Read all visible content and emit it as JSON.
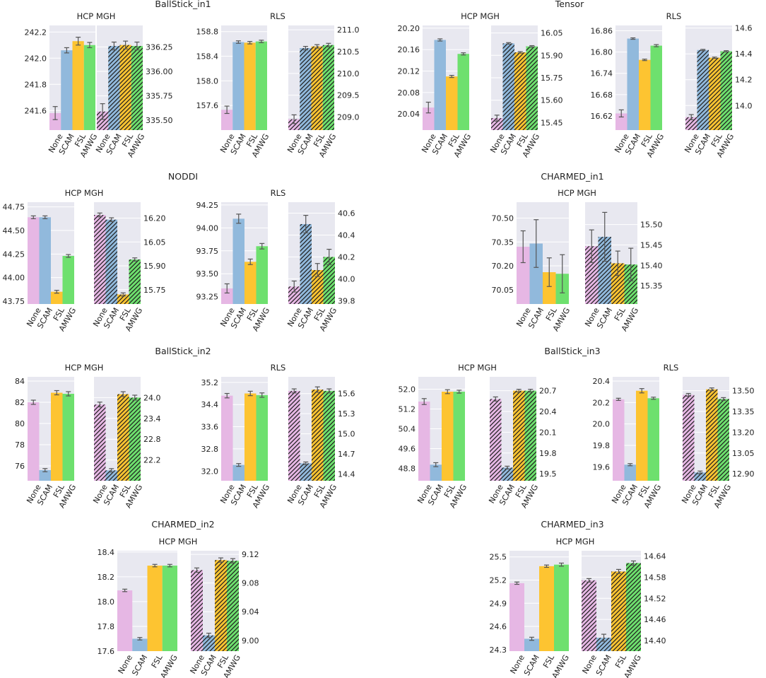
{
  "categories": [
    "None",
    "SCAM",
    "FSL",
    "AMWG"
  ],
  "colors": {
    "None": "#e6b7e4",
    "SCAM": "#91b9dc",
    "FSL": "#fdc431",
    "AMWG": "#6ee06e",
    "plot_bg": "#e8e8f0",
    "grid": "#ffffff",
    "hatch": "#1e1e1e",
    "error_bar": "#555555"
  },
  "chart_data": [
    {
      "type": "bar",
      "title": "BallStick_in1",
      "panels": [
        {
          "title": "HCP MGH",
          "axis_side": "left",
          "hatched": false,
          "ylim": [
            241.45,
            242.25
          ],
          "yticks": [
            "242.2",
            "242.0",
            "241.8",
            "241.6"
          ],
          "values": [
            241.58,
            242.06,
            242.13,
            242.1
          ],
          "errors": [
            0.05,
            0.02,
            0.03,
            0.02
          ]
        },
        {
          "title": "",
          "axis_side": "right",
          "hatched": true,
          "ylim": [
            335.4,
            336.47
          ],
          "yticks": [
            "336.25",
            "336.00",
            "335.75",
            "335.50"
          ],
          "values": [
            335.59,
            336.26,
            336.27,
            336.26
          ],
          "errors": [
            0.08,
            0.04,
            0.04,
            0.04
          ]
        },
        {
          "title": "RLS",
          "axis_side": "left",
          "hatched": false,
          "ylim": [
            157.2,
            158.9
          ],
          "yticks": [
            "158.8",
            "158.4",
            "158.0",
            "157.6"
          ],
          "values": [
            157.53,
            158.63,
            158.62,
            158.64
          ],
          "errors": [
            0.06,
            0.02,
            0.02,
            0.02
          ]
        },
        {
          "title": "",
          "axis_side": "right",
          "hatched": true,
          "ylim": [
            208.7,
            211.1
          ],
          "yticks": [
            "211.0",
            "210.5",
            "210.0",
            "209.5",
            "209.0"
          ],
          "values": [
            208.95,
            210.58,
            210.62,
            210.65
          ],
          "errors": [
            0.1,
            0.04,
            0.04,
            0.04
          ]
        }
      ]
    },
    {
      "type": "bar",
      "title": "Tensor",
      "panels": [
        {
          "title": "HCP MGH",
          "axis_side": "left",
          "hatched": false,
          "ylim": [
            20.01,
            20.205
          ],
          "yticks": [
            "20.20",
            "20.16",
            "20.12",
            "20.08",
            "20.04"
          ],
          "values": [
            20.052,
            20.178,
            20.11,
            20.152
          ],
          "errors": [
            0.01,
            0.002,
            0.002,
            0.002
          ]
        },
        {
          "title": "",
          "axis_side": "right",
          "hatched": true,
          "ylim": [
            15.4,
            16.1
          ],
          "yticks": [
            "16.05",
            "15.90",
            "15.75",
            "15.60",
            "15.45"
          ],
          "values": [
            15.48,
            15.98,
            15.92,
            15.96
          ],
          "errors": [
            0.02,
            0.005,
            0.005,
            0.005
          ]
        },
        {
          "title": "RLS",
          "axis_side": "left",
          "hatched": false,
          "ylim": [
            16.58,
            16.875
          ],
          "yticks": [
            "16.86",
            "16.80",
            "16.74",
            "16.68",
            "16.62"
          ],
          "values": [
            16.627,
            16.838,
            16.778,
            16.818
          ],
          "errors": [
            0.01,
            0.002,
            0.002,
            0.003
          ]
        },
        {
          "title": "",
          "axis_side": "right",
          "hatched": true,
          "ylim": [
            13.81,
            14.62
          ],
          "yticks": [
            "14.6",
            "14.4",
            "14.2",
            "14.0"
          ],
          "values": [
            13.91,
            14.43,
            14.37,
            14.42
          ],
          "errors": [
            0.02,
            0.005,
            0.005,
            0.005
          ]
        }
      ]
    },
    {
      "type": "bar",
      "title": "NODDI",
      "panels": [
        {
          "title": "HCP MGH",
          "axis_side": "left",
          "hatched": false,
          "ylim": [
            43.72,
            44.8
          ],
          "yticks": [
            "44.75",
            "44.50",
            "44.25",
            "44.00",
            "43.75"
          ],
          "values": [
            44.64,
            44.64,
            43.85,
            44.23
          ],
          "errors": [
            0.015,
            0.015,
            0.015,
            0.015
          ]
        },
        {
          "title": "",
          "axis_side": "right",
          "hatched": true,
          "ylim": [
            15.66,
            16.3
          ],
          "yticks": [
            "16.20",
            "16.05",
            "15.90",
            "15.75"
          ],
          "values": [
            16.22,
            16.19,
            15.72,
            15.94
          ],
          "errors": [
            0.012,
            0.012,
            0.01,
            0.01
          ]
        },
        {
          "title": "RLS",
          "axis_side": "left",
          "hatched": false,
          "ylim": [
            93.17,
            94.28
          ],
          "yticks": [
            "94.25",
            "94.00",
            "93.75",
            "93.50",
            "93.25"
          ],
          "values": [
            93.34,
            94.1,
            93.63,
            93.8
          ],
          "errors": [
            0.05,
            0.05,
            0.03,
            0.03
          ]
        },
        {
          "title": "",
          "axis_side": "right",
          "hatched": true,
          "ylim": [
            39.77,
            40.7
          ],
          "yticks": [
            "40.6",
            "40.4",
            "40.2",
            "40.0",
            "39.8"
          ],
          "values": [
            39.93,
            40.5,
            40.08,
            40.2
          ],
          "errors": [
            0.05,
            0.08,
            0.06,
            0.07
          ]
        }
      ]
    },
    {
      "type": "bar",
      "title": "CHARMED_in1",
      "panels": [
        {
          "title": "HCP MGH",
          "axis_side": "left",
          "hatched": false,
          "ylim": [
            69.96,
            70.6
          ],
          "yticks": [
            "70.50",
            "70.35",
            "70.20",
            "70.05"
          ],
          "values": [
            70.32,
            70.34,
            70.16,
            70.15
          ],
          "errors": [
            0.1,
            0.15,
            0.09,
            0.12
          ]
        },
        {
          "title": "",
          "axis_side": "right",
          "hatched": true,
          "ylim": [
            15.305,
            15.555
          ],
          "yticks": [
            "15.50",
            "15.45",
            "15.40",
            "15.35"
          ],
          "values": [
            15.447,
            15.47,
            15.405,
            15.402
          ],
          "errors": [
            0.04,
            0.06,
            0.03,
            0.04
          ]
        }
      ]
    },
    {
      "type": "bar",
      "title": "BallStick_in2",
      "panels": [
        {
          "title": "HCP MGH",
          "axis_side": "left",
          "hatched": false,
          "ylim": [
            74.6,
            84.4
          ],
          "yticks": [
            "84",
            "82",
            "80",
            "78",
            "76"
          ],
          "values": [
            82.0,
            75.6,
            82.9,
            82.8
          ],
          "errors": [
            0.2,
            0.15,
            0.2,
            0.2
          ]
        },
        {
          "title": "",
          "axis_side": "right",
          "hatched": true,
          "ylim": [
            21.6,
            24.6
          ],
          "yticks": [
            "24.0",
            "23.4",
            "22.8",
            "22.2"
          ],
          "values": [
            23.8,
            21.9,
            24.1,
            24.0
          ],
          "errors": [
            0.07,
            0.05,
            0.07,
            0.07
          ]
        },
        {
          "title": "RLS",
          "axis_side": "left",
          "hatched": false,
          "ylim": [
            31.65,
            35.4
          ],
          "yticks": [
            "35.2",
            "34.4",
            "33.6",
            "32.8",
            "32.0"
          ],
          "values": [
            34.72,
            32.22,
            34.8,
            34.74
          ],
          "errors": [
            0.08,
            0.05,
            0.08,
            0.08
          ]
        },
        {
          "title": "",
          "axis_side": "right",
          "hatched": true,
          "ylim": [
            14.3,
            15.85
          ],
          "yticks": [
            "15.6",
            "15.3",
            "15.0",
            "14.7",
            "14.4"
          ],
          "values": [
            15.64,
            14.56,
            15.66,
            15.64
          ],
          "errors": [
            0.03,
            0.02,
            0.04,
            0.03
          ]
        }
      ]
    },
    {
      "type": "bar",
      "title": "BallStick_in3",
      "panels": [
        {
          "title": "HCP MGH",
          "axis_side": "left",
          "hatched": false,
          "ylim": [
            48.3,
            52.5
          ],
          "yticks": [
            "52.0",
            "51.2",
            "50.4",
            "49.6",
            "48.8"
          ],
          "values": [
            51.5,
            48.95,
            51.9,
            51.9
          ],
          "errors": [
            0.12,
            0.08,
            0.08,
            0.06
          ]
        },
        {
          "title": "",
          "axis_side": "right",
          "hatched": true,
          "ylim": [
            19.4,
            20.9
          ],
          "yticks": [
            "20.7",
            "20.4",
            "20.1",
            "19.8",
            "19.5"
          ],
          "values": [
            20.58,
            19.59,
            20.7,
            20.7
          ],
          "errors": [
            0.03,
            0.02,
            0.02,
            0.02
          ]
        },
        {
          "title": "RLS",
          "axis_side": "left",
          "hatched": false,
          "ylim": [
            19.47,
            20.44
          ],
          "yticks": [
            "20.4",
            "20.2",
            "20.0",
            "19.8",
            "19.6"
          ],
          "values": [
            20.23,
            19.62,
            20.31,
            20.24
          ],
          "errors": [
            0.01,
            0.01,
            0.02,
            0.01
          ]
        },
        {
          "title": "",
          "axis_side": "right",
          "hatched": true,
          "ylim": [
            12.85,
            13.6
          ],
          "yticks": [
            "13.50",
            "13.35",
            "13.20",
            "13.05",
            "12.90"
          ],
          "values": [
            13.47,
            12.91,
            13.51,
            13.44
          ],
          "errors": [
            0.01,
            0.01,
            0.01,
            0.01
          ]
        }
      ]
    },
    {
      "type": "bar",
      "title": "CHARMED_in2",
      "panels": [
        {
          "title": "HCP MGH",
          "axis_side": "left",
          "hatched": false,
          "ylim": [
            17.6,
            18.41
          ],
          "yticks": [
            "18.4",
            "18.2",
            "18.0",
            "17.8",
            "17.6"
          ],
          "values": [
            18.09,
            17.7,
            18.29,
            18.29
          ],
          "errors": [
            0.01,
            0.01,
            0.01,
            0.01
          ]
        },
        {
          "title": "",
          "axis_side": "right",
          "hatched": true,
          "ylim": [
            8.985,
            9.125
          ],
          "yticks": [
            "9.12",
            "9.08",
            "9.04",
            "9.00"
          ],
          "values": [
            9.098,
            9.007,
            9.112,
            9.111
          ],
          "errors": [
            0.003,
            0.003,
            0.003,
            0.003
          ]
        }
      ]
    },
    {
      "type": "bar",
      "title": "CHARMED_in3",
      "panels": [
        {
          "title": "HCP MGH",
          "axis_side": "left",
          "hatched": false,
          "ylim": [
            24.28,
            25.58
          ],
          "yticks": [
            "25.5",
            "25.2",
            "24.9",
            "24.6",
            "24.3"
          ],
          "values": [
            25.16,
            24.44,
            25.38,
            25.4
          ],
          "errors": [
            0.015,
            0.02,
            0.015,
            0.02
          ]
        },
        {
          "title": "",
          "axis_side": "right",
          "hatched": true,
          "ylim": [
            14.37,
            14.655
          ],
          "yticks": [
            "14.64",
            "14.58",
            "14.52",
            "14.46",
            "14.40"
          ],
          "values": [
            14.571,
            14.408,
            14.596,
            14.62
          ],
          "errors": [
            0.005,
            0.01,
            0.006,
            0.006
          ]
        }
      ]
    }
  ]
}
